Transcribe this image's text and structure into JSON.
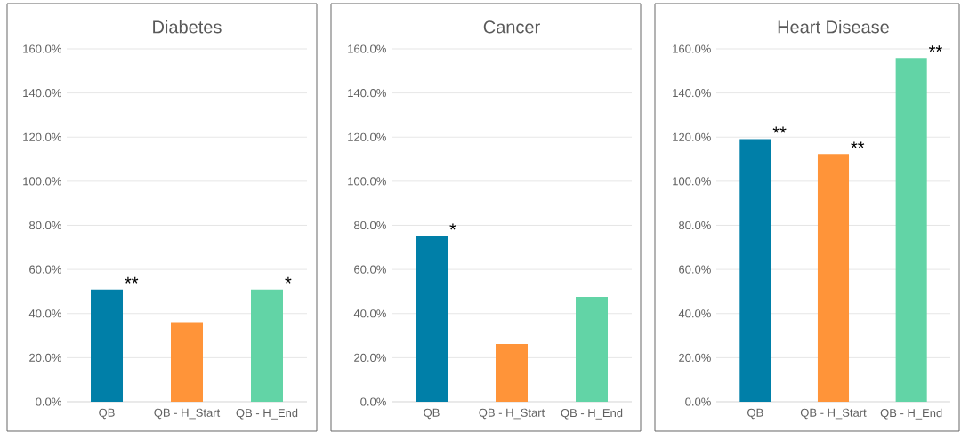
{
  "chart_data": [
    {
      "type": "bar",
      "title": "Diabetes",
      "categories": [
        "QB",
        "QB - H_Start",
        "QB - H_End"
      ],
      "values": [
        50.9,
        36.1,
        50.9
      ],
      "colors": [
        "#007fa8",
        "#ff9439",
        "#62d4a6"
      ],
      "ylim": [
        0,
        160
      ],
      "yticks": [
        {
          "value": 0,
          "label": "0.0%"
        },
        {
          "value": 20,
          "label": "20.0%"
        },
        {
          "value": 40,
          "label": "40.0%"
        },
        {
          "value": 60,
          "label": "60.0%"
        },
        {
          "value": 80,
          "label": "80.0%"
        },
        {
          "value": 100,
          "label": "100.0%"
        },
        {
          "value": 120,
          "label": "120.0%"
        },
        {
          "value": 140,
          "label": "140.0%"
        },
        {
          "value": 160,
          "label": "160.0%"
        }
      ],
      "grid": "y",
      "annotations": [
        {
          "text": "**",
          "x": "QB",
          "y": 50.9
        },
        {
          "text": "*",
          "x": "QB - H_End",
          "y": 50.9
        }
      ]
    },
    {
      "type": "bar",
      "title": "Cancer",
      "categories": [
        "QB",
        "QB - H_Start",
        "QB - H_End"
      ],
      "values": [
        75.2,
        26.2,
        47.6
      ],
      "colors": [
        "#007fa8",
        "#ff9439",
        "#62d4a6"
      ],
      "ylim": [
        0,
        160
      ],
      "yticks": [
        {
          "value": 0,
          "label": "0.0%"
        },
        {
          "value": 20,
          "label": "20.0%"
        },
        {
          "value": 40,
          "label": "40.0%"
        },
        {
          "value": 60,
          "label": "60.0%"
        },
        {
          "value": 80,
          "label": "80.0%"
        },
        {
          "value": 100,
          "label": "100.0%"
        },
        {
          "value": 120,
          "label": "120.0%"
        },
        {
          "value": 140,
          "label": "140.0%"
        },
        {
          "value": 160,
          "label": "160.0%"
        }
      ],
      "grid": "y",
      "annotations": [
        {
          "text": "*",
          "x": "QB",
          "y": 75.2
        }
      ]
    },
    {
      "type": "bar",
      "title": "Heart Disease",
      "categories": [
        "QB",
        "QB - H_Start",
        "QB - H_End"
      ],
      "values": [
        119.1,
        112.3,
        155.9
      ],
      "colors": [
        "#007fa8",
        "#ff9439",
        "#62d4a6"
      ],
      "ylim": [
        0,
        160
      ],
      "yticks": [
        {
          "value": 0,
          "label": "0.0%"
        },
        {
          "value": 20,
          "label": "20.0%"
        },
        {
          "value": 40,
          "label": "40.0%"
        },
        {
          "value": 60,
          "label": "60.0%"
        },
        {
          "value": 80,
          "label": "80.0%"
        },
        {
          "value": 100,
          "label": "100.0%"
        },
        {
          "value": 120,
          "label": "120.0%"
        },
        {
          "value": 140,
          "label": "140.0%"
        },
        {
          "value": 160,
          "label": "160.0%"
        }
      ],
      "grid": "y",
      "annotations": [
        {
          "text": "**",
          "x": "QB",
          "y": 119.1
        },
        {
          "text": "**",
          "x": "QB - H_Start",
          "y": 112.3
        },
        {
          "text": "**",
          "x": "QB - H_End",
          "y": 155.9
        }
      ]
    }
  ]
}
